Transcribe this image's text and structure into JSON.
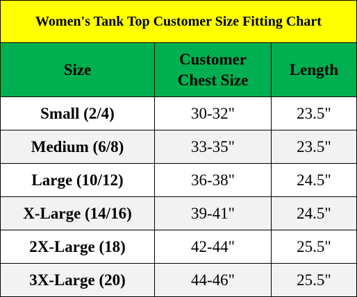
{
  "header": {
    "title": "Women's Tank Top Customer Size Fitting Chart"
  },
  "table": {
    "columns": [
      "Size",
      "Customer Chest Size",
      "Length"
    ],
    "rows": [
      [
        "Small (2/4)",
        "30-32\"",
        "23.5\""
      ],
      [
        "Medium (6/8)",
        "33-35\"",
        "23.5\""
      ],
      [
        "Large (10/12)",
        "36-38\"",
        "24.5\""
      ],
      [
        "X-Large (14/16)",
        "39-41\"",
        "24.5\""
      ],
      [
        "2X-Large (18)",
        "42-44\"",
        "25.5\""
      ],
      [
        "3X-Large (20)",
        "44-46\"",
        "25.5\""
      ]
    ]
  }
}
